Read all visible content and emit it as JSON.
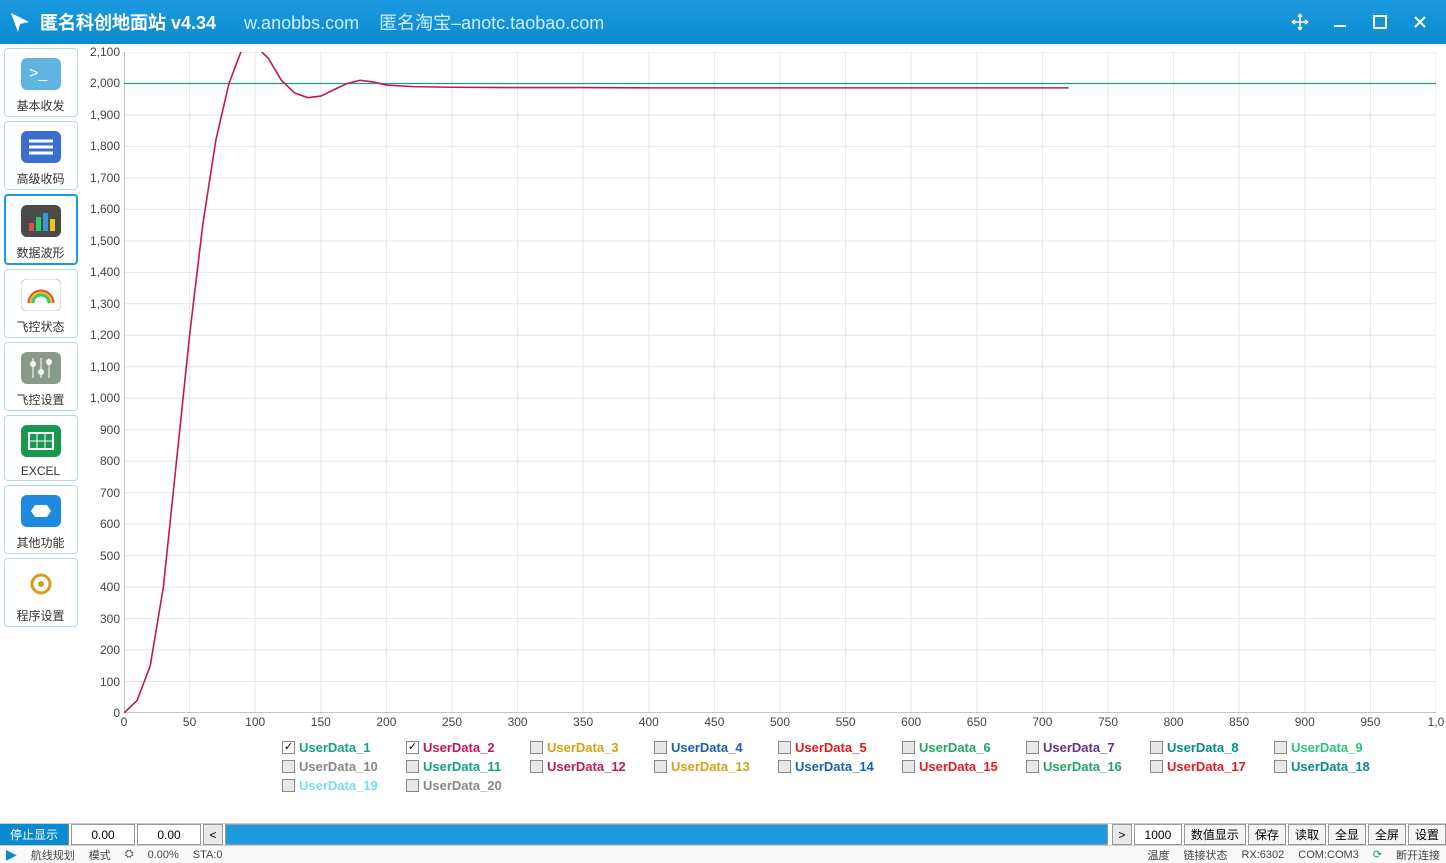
{
  "titlebar": {
    "title": "匿名科创地面站 v4.34",
    "link1": "w.anobbs.com",
    "link2": "匿名淘宝–anotc.taobao.com"
  },
  "sidebar": {
    "items": [
      {
        "label": "基本收发",
        "bg": "#5fb4e0",
        "active": false
      },
      {
        "label": "高级收码",
        "bg": "#3a6fd0",
        "active": false
      },
      {
        "label": "数据波形",
        "bg": "#4a4a4a",
        "active": true
      },
      {
        "label": "飞控状态",
        "bg": "#ffffff",
        "active": false
      },
      {
        "label": "飞控设置",
        "bg": "#8a9a8a",
        "active": false
      },
      {
        "label": "EXCEL",
        "bg": "#1a9850",
        "active": false
      },
      {
        "label": "其他功能",
        "bg": "#1d8ae0",
        "active": false
      },
      {
        "label": "程序设置",
        "bg": "#f0c000",
        "active": false
      }
    ]
  },
  "chart": {
    "type": "line",
    "background_color": "#ffffff",
    "grid_color": "#e6e6e6",
    "axis_color": "#888888",
    "xlim": [
      0,
      1000
    ],
    "ylim": [
      0,
      2100
    ],
    "xtick_step": 50,
    "ytick_step": 100,
    "label_fontsize": 12,
    "series": [
      {
        "name": "UserData_1",
        "color": "#16a085",
        "line_width": 1.2,
        "data": [
          [
            0,
            2000
          ],
          [
            1000,
            2000
          ]
        ]
      },
      {
        "name": "UserData_2",
        "color": "#c2185b",
        "line_width": 1.6,
        "data": [
          [
            0,
            0
          ],
          [
            10,
            40
          ],
          [
            20,
            150
          ],
          [
            30,
            400
          ],
          [
            40,
            800
          ],
          [
            50,
            1200
          ],
          [
            60,
            1550
          ],
          [
            70,
            1820
          ],
          [
            80,
            2000
          ],
          [
            90,
            2110
          ],
          [
            100,
            2120
          ],
          [
            110,
            2080
          ],
          [
            120,
            2010
          ],
          [
            130,
            1970
          ],
          [
            140,
            1955
          ],
          [
            150,
            1960
          ],
          [
            160,
            1980
          ],
          [
            170,
            2000
          ],
          [
            180,
            2010
          ],
          [
            190,
            2005
          ],
          [
            200,
            1995
          ],
          [
            220,
            1990
          ],
          [
            250,
            1988
          ],
          [
            300,
            1987
          ],
          [
            350,
            1987
          ],
          [
            400,
            1986
          ],
          [
            450,
            1986
          ],
          [
            500,
            1986
          ],
          [
            550,
            1986
          ],
          [
            600,
            1986
          ],
          [
            650,
            1986
          ],
          [
            700,
            1986
          ],
          [
            720,
            1986
          ]
        ]
      }
    ],
    "legend_items": [
      {
        "name": "UserData_1",
        "color": "#16a085",
        "checked": true
      },
      {
        "name": "UserData_2",
        "color": "#c2185b",
        "checked": true
      },
      {
        "name": "UserData_3",
        "color": "#d4a017",
        "checked": false
      },
      {
        "name": "UserData_4",
        "color": "#1a5fb4",
        "checked": false
      },
      {
        "name": "UserData_5",
        "color": "#e01b24",
        "checked": false
      },
      {
        "name": "UserData_6",
        "color": "#26a269",
        "checked": false
      },
      {
        "name": "UserData_7",
        "color": "#613583",
        "checked": false
      },
      {
        "name": "UserData_8",
        "color": "#0a8a8a",
        "checked": false
      },
      {
        "name": "UserData_9",
        "color": "#2ec27e",
        "checked": false
      },
      {
        "name": "UserData_10",
        "color": "#888888",
        "checked": false
      },
      {
        "name": "UserData_11",
        "color": "#16a085",
        "checked": false
      },
      {
        "name": "UserData_12",
        "color": "#c2185b",
        "checked": false
      },
      {
        "name": "UserData_13",
        "color": "#d4a017",
        "checked": false
      },
      {
        "name": "UserData_14",
        "color": "#1a5fb4",
        "checked": false
      },
      {
        "name": "UserData_15",
        "color": "#e01b24",
        "checked": false
      },
      {
        "name": "UserData_16",
        "color": "#26a269",
        "checked": false
      },
      {
        "name": "UserData_17",
        "color": "#e01b24",
        "checked": false
      },
      {
        "name": "UserData_18",
        "color": "#0a8a8a",
        "checked": false
      },
      {
        "name": "UserData_19",
        "color": "#7cdce8",
        "checked": false
      },
      {
        "name": "UserData_20",
        "color": "#888888",
        "checked": false
      }
    ]
  },
  "bottombar": {
    "stop_label": "停止显示",
    "val1": "0.00",
    "val2": "0.00",
    "range_value": "1000",
    "btn_value_display": "数值显示",
    "btn_save": "保存",
    "btn_read": "读取",
    "btn_allshow": "全显",
    "btn_fullscreen": "全屏",
    "btn_settings": "设置"
  },
  "statusbar": {
    "nav_label": "航线规划",
    "sta": "STA:0",
    "mode_label": "模式",
    "cpu": "0.00%",
    "temp_label": "温度",
    "link_label": "链接状态",
    "rx": "RX:6302",
    "com": "COM:COM3",
    "conn_label": "断开连接"
  }
}
